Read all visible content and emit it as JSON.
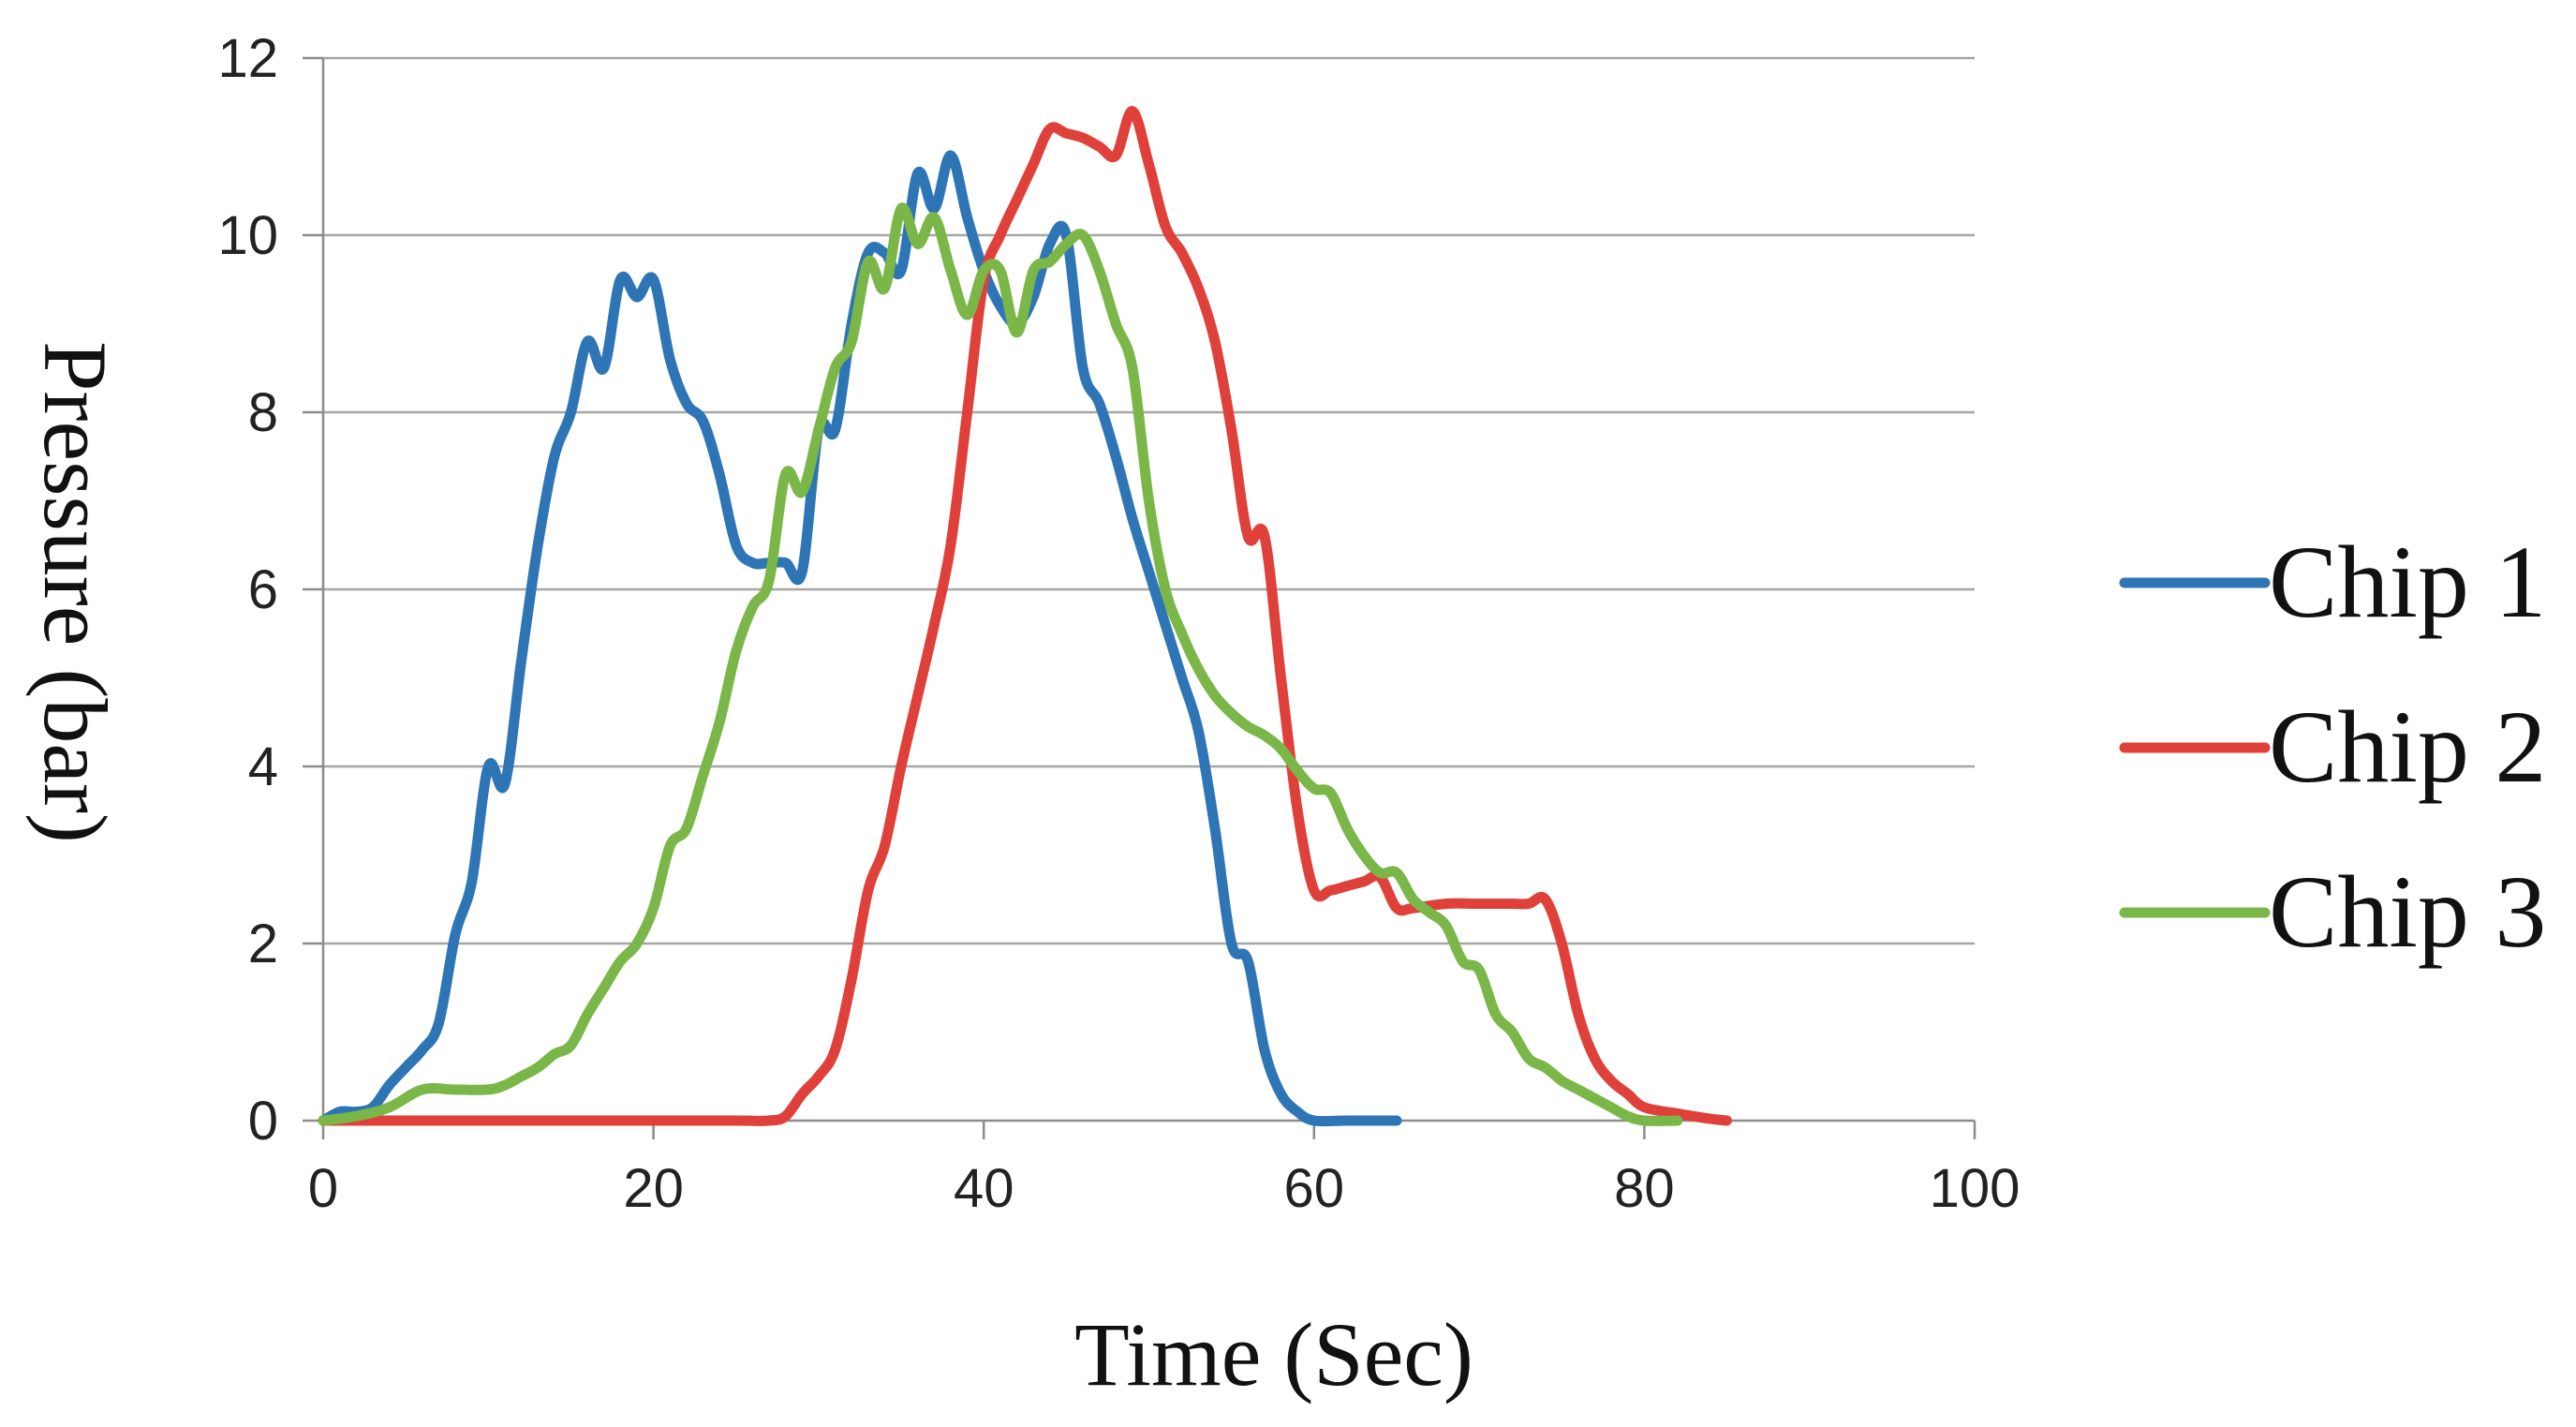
{
  "chart_data": {
    "type": "line",
    "title": "",
    "xlabel": "Time (Sec)",
    "ylabel": "Pressure (bar)",
    "xlim": [
      0,
      100
    ],
    "ylim": [
      0,
      12
    ],
    "xticks": [
      0,
      20,
      40,
      60,
      80,
      100
    ],
    "yticks": [
      0,
      2,
      4,
      6,
      8,
      10,
      12
    ],
    "xtick_labels": [
      "0",
      "20",
      "40",
      "60",
      "80",
      "100"
    ],
    "ytick_labels": [
      "0",
      "2",
      "4",
      "6",
      "8",
      "10",
      "12"
    ],
    "grid": "horizontal",
    "legend_position": "right",
    "series": [
      {
        "name": "Chip 1",
        "color": "#2e75b6",
        "points": [
          [
            0,
            0
          ],
          [
            1,
            0.1
          ],
          [
            2,
            0.1
          ],
          [
            3,
            0.15
          ],
          [
            4,
            0.4
          ],
          [
            5,
            0.6
          ],
          [
            6,
            0.8
          ],
          [
            7,
            1.1
          ],
          [
            8,
            2.1
          ],
          [
            9,
            2.7
          ],
          [
            10,
            4.0
          ],
          [
            11,
            3.8
          ],
          [
            12,
            5.2
          ],
          [
            13,
            6.5
          ],
          [
            14,
            7.5
          ],
          [
            15,
            8.0
          ],
          [
            16,
            8.8
          ],
          [
            17,
            8.5
          ],
          [
            18,
            9.5
          ],
          [
            19,
            9.3
          ],
          [
            20,
            9.5
          ],
          [
            21,
            8.6
          ],
          [
            22,
            8.1
          ],
          [
            23,
            7.9
          ],
          [
            24,
            7.3
          ],
          [
            25,
            6.5
          ],
          [
            26,
            6.3
          ],
          [
            27,
            6.3
          ],
          [
            28,
            6.3
          ],
          [
            29,
            6.2
          ],
          [
            30,
            7.8
          ],
          [
            31,
            7.8
          ],
          [
            32,
            9.0
          ],
          [
            33,
            9.8
          ],
          [
            34,
            9.8
          ],
          [
            35,
            9.6
          ],
          [
            36,
            10.7
          ],
          [
            37,
            10.3
          ],
          [
            38,
            10.9
          ],
          [
            39,
            10.2
          ],
          [
            40,
            9.6
          ],
          [
            41,
            9.2
          ],
          [
            42,
            9.0
          ],
          [
            43,
            9.3
          ],
          [
            44,
            9.9
          ],
          [
            45,
            10.0
          ],
          [
            46,
            8.5
          ],
          [
            47,
            8.1
          ],
          [
            48,
            7.5
          ],
          [
            49,
            6.8
          ],
          [
            50,
            6.2
          ],
          [
            51,
            5.6
          ],
          [
            52,
            5.0
          ],
          [
            53,
            4.4
          ],
          [
            54,
            3.3
          ],
          [
            55,
            2.0
          ],
          [
            56,
            1.8
          ],
          [
            57,
            0.8
          ],
          [
            58,
            0.3
          ],
          [
            59,
            0.1
          ],
          [
            60,
            0.0
          ],
          [
            62,
            0.0
          ],
          [
            65,
            0.0
          ]
        ]
      },
      {
        "name": "Chip 2",
        "color": "#e0403a",
        "points": [
          [
            0,
            0
          ],
          [
            5,
            0
          ],
          [
            10,
            0
          ],
          [
            15,
            0
          ],
          [
            20,
            0
          ],
          [
            25,
            0
          ],
          [
            27,
            0
          ],
          [
            28,
            0.05
          ],
          [
            29,
            0.3
          ],
          [
            30,
            0.5
          ],
          [
            31,
            0.8
          ],
          [
            32,
            1.6
          ],
          [
            33,
            2.6
          ],
          [
            34,
            3.1
          ],
          [
            35,
            4.0
          ],
          [
            36,
            4.8
          ],
          [
            37,
            5.6
          ],
          [
            38,
            6.5
          ],
          [
            39,
            8.0
          ],
          [
            40,
            9.5
          ],
          [
            41,
            10.0
          ],
          [
            42,
            10.4
          ],
          [
            43,
            10.8
          ],
          [
            44,
            11.2
          ],
          [
            45,
            11.15
          ],
          [
            46,
            11.1
          ],
          [
            47,
            11.0
          ],
          [
            48,
            10.9
          ],
          [
            49,
            11.4
          ],
          [
            50,
            10.8
          ],
          [
            51,
            10.1
          ],
          [
            52,
            9.8
          ],
          [
            53,
            9.4
          ],
          [
            54,
            8.8
          ],
          [
            55,
            7.8
          ],
          [
            56,
            6.6
          ],
          [
            57,
            6.6
          ],
          [
            58,
            5.0
          ],
          [
            59,
            3.5
          ],
          [
            60,
            2.6
          ],
          [
            61,
            2.6
          ],
          [
            62,
            2.65
          ],
          [
            63,
            2.7
          ],
          [
            64,
            2.75
          ],
          [
            65,
            2.4
          ],
          [
            66,
            2.4
          ],
          [
            68,
            2.45
          ],
          [
            70,
            2.45
          ],
          [
            72,
            2.45
          ],
          [
            73,
            2.45
          ],
          [
            74,
            2.5
          ],
          [
            75,
            2.0
          ],
          [
            76,
            1.2
          ],
          [
            77,
            0.7
          ],
          [
            78,
            0.45
          ],
          [
            79,
            0.3
          ],
          [
            80,
            0.15
          ],
          [
            82,
            0.08
          ],
          [
            84,
            0.02
          ],
          [
            85,
            0.0
          ]
        ]
      },
      {
        "name": "Chip 3",
        "color": "#7ab648",
        "points": [
          [
            0,
            0
          ],
          [
            2,
            0.05
          ],
          [
            4,
            0.15
          ],
          [
            6,
            0.35
          ],
          [
            8,
            0.35
          ],
          [
            10,
            0.35
          ],
          [
            11,
            0.4
          ],
          [
            12,
            0.5
          ],
          [
            13,
            0.6
          ],
          [
            14,
            0.75
          ],
          [
            15,
            0.85
          ],
          [
            16,
            1.2
          ],
          [
            17,
            1.5
          ],
          [
            18,
            1.8
          ],
          [
            19,
            2.0
          ],
          [
            20,
            2.4
          ],
          [
            21,
            3.1
          ],
          [
            22,
            3.3
          ],
          [
            23,
            3.9
          ],
          [
            24,
            4.5
          ],
          [
            25,
            5.3
          ],
          [
            26,
            5.8
          ],
          [
            27,
            6.1
          ],
          [
            28,
            7.3
          ],
          [
            29,
            7.1
          ],
          [
            30,
            7.8
          ],
          [
            31,
            8.5
          ],
          [
            32,
            8.8
          ],
          [
            33,
            9.7
          ],
          [
            34,
            9.4
          ],
          [
            35,
            10.3
          ],
          [
            36,
            9.9
          ],
          [
            37,
            10.2
          ],
          [
            38,
            9.6
          ],
          [
            39,
            9.1
          ],
          [
            40,
            9.6
          ],
          [
            41,
            9.6
          ],
          [
            42,
            8.9
          ],
          [
            43,
            9.6
          ],
          [
            44,
            9.7
          ],
          [
            45,
            9.9
          ],
          [
            46,
            10.0
          ],
          [
            47,
            9.6
          ],
          [
            48,
            9.0
          ],
          [
            49,
            8.5
          ],
          [
            50,
            7.0
          ],
          [
            51,
            6.0
          ],
          [
            52,
            5.5
          ],
          [
            53,
            5.1
          ],
          [
            54,
            4.8
          ],
          [
            55,
            4.6
          ],
          [
            56,
            4.45
          ],
          [
            57,
            4.35
          ],
          [
            58,
            4.2
          ],
          [
            59,
            3.95
          ],
          [
            60,
            3.75
          ],
          [
            61,
            3.7
          ],
          [
            62,
            3.3
          ],
          [
            63,
            3.0
          ],
          [
            64,
            2.8
          ],
          [
            65,
            2.8
          ],
          [
            66,
            2.5
          ],
          [
            67,
            2.35
          ],
          [
            68,
            2.2
          ],
          [
            69,
            1.8
          ],
          [
            70,
            1.7
          ],
          [
            71,
            1.2
          ],
          [
            72,
            1.0
          ],
          [
            73,
            0.7
          ],
          [
            74,
            0.6
          ],
          [
            75,
            0.45
          ],
          [
            76,
            0.35
          ],
          [
            77,
            0.25
          ],
          [
            78,
            0.15
          ],
          [
            79,
            0.05
          ],
          [
            80,
            0.0
          ],
          [
            82,
            0.0
          ]
        ]
      }
    ]
  }
}
